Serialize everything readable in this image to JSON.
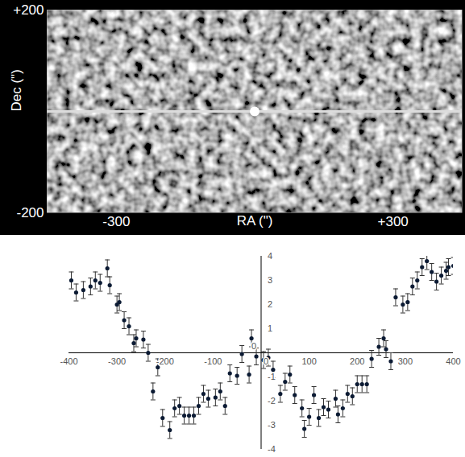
{
  "chart_data": [
    {
      "type": "image",
      "xlabel": "RA (\")",
      "ylabel": "Dec (\")",
      "xlim": [
        -450,
        450
      ],
      "ylim": [
        -200,
        200
      ],
      "xticks": [
        -300,
        {
          "value": 300,
          "label": "+300"
        }
      ],
      "yticks": [
        -200,
        {
          "value": 200,
          "label": "+200"
        }
      ],
      "streak_dec": 0,
      "source": {
        "ra": 0,
        "dec": 0
      }
    },
    {
      "type": "scatter",
      "x": [
        -395,
        -385,
        -370,
        -355,
        -345,
        -335,
        -320,
        -315,
        -300,
        -295,
        -285,
        -275,
        -265,
        -260,
        -245,
        -235,
        -225,
        -215,
        -205,
        -190,
        -180,
        -170,
        -160,
        -150,
        -140,
        -130,
        -120,
        -110,
        -95,
        -85,
        -75,
        -65,
        -50,
        -40,
        -25,
        -20,
        -10,
        5,
        15,
        25,
        40,
        50,
        60,
        70,
        85,
        90,
        100,
        110,
        120,
        130,
        140,
        155,
        160,
        170,
        180,
        190,
        200,
        210,
        220,
        230,
        245,
        255,
        260,
        270,
        280,
        295,
        305,
        315,
        325,
        335,
        345,
        355,
        365,
        375,
        385,
        390,
        400
      ],
      "values": [
        3.0,
        2.5,
        2.6,
        2.75,
        3.0,
        2.9,
        3.5,
        2.8,
        2.0,
        2.1,
        1.35,
        1.1,
        0.4,
        0.6,
        0.55,
        0,
        -1.6,
        -0.6,
        -2.7,
        -3.2,
        -2.3,
        -2.2,
        -2.6,
        -2.6,
        -2.6,
        -2.2,
        -1.7,
        -1.9,
        -1.85,
        -1.6,
        -2.2,
        -0.85,
        -0.95,
        -0.05,
        -0.9,
        0.6,
        -0.15,
        -0.3,
        -0.2,
        -0.7,
        -1.7,
        -1.2,
        -0.9,
        -1.75,
        -2.3,
        -3.15,
        -2.65,
        -1.75,
        -2.7,
        -2.25,
        -2.35,
        -1.9,
        -2.55,
        -2.3,
        -1.7,
        -1.8,
        -1.3,
        -1.3,
        -1.3,
        -0.25,
        0.25,
        0.6,
        0.15,
        -0.35,
        2.3,
        2.0,
        2.1,
        2.75,
        3.0,
        3.55,
        3.8,
        3.35,
        2.95,
        3.2,
        3.4,
        3.55,
        3.6
      ],
      "errors": [
        0.35,
        0.35,
        0.35,
        0.35,
        0.35,
        0.35,
        0.35,
        0.35,
        0.35,
        0.35,
        0.35,
        0.35,
        0.35,
        0.35,
        0.35,
        0.35,
        0.35,
        0.35,
        0.35,
        0.35,
        0.35,
        0.35,
        0.35,
        0.35,
        0.35,
        0.35,
        0.35,
        0.35,
        0.35,
        0.35,
        0.35,
        0.35,
        0.35,
        0.35,
        0.35,
        0.35,
        0.35,
        0.35,
        0.35,
        0.35,
        0.35,
        0.35,
        0.35,
        0.35,
        0.35,
        0.35,
        0.35,
        0.35,
        0.35,
        0.35,
        0.35,
        0.35,
        0.35,
        0.35,
        0.35,
        0.35,
        0.35,
        0.35,
        0.35,
        0.35,
        0.35,
        0.35,
        0.35,
        0.35,
        0.35,
        0.35,
        0.35,
        0.35,
        0.35,
        0.35,
        0.35,
        0.35,
        0.35,
        0.35,
        0.35,
        0.35,
        0.35
      ],
      "xlim": [
        -400,
        400
      ],
      "ylim": [
        -4,
        4
      ],
      "xticks": [
        -400,
        -300,
        -200,
        -100,
        0,
        100,
        200,
        300,
        400
      ],
      "yticks": [
        -4,
        -3,
        -2,
        -1,
        0,
        1,
        2,
        3,
        4
      ],
      "color": "#0b1a33",
      "marker": "circle"
    }
  ]
}
